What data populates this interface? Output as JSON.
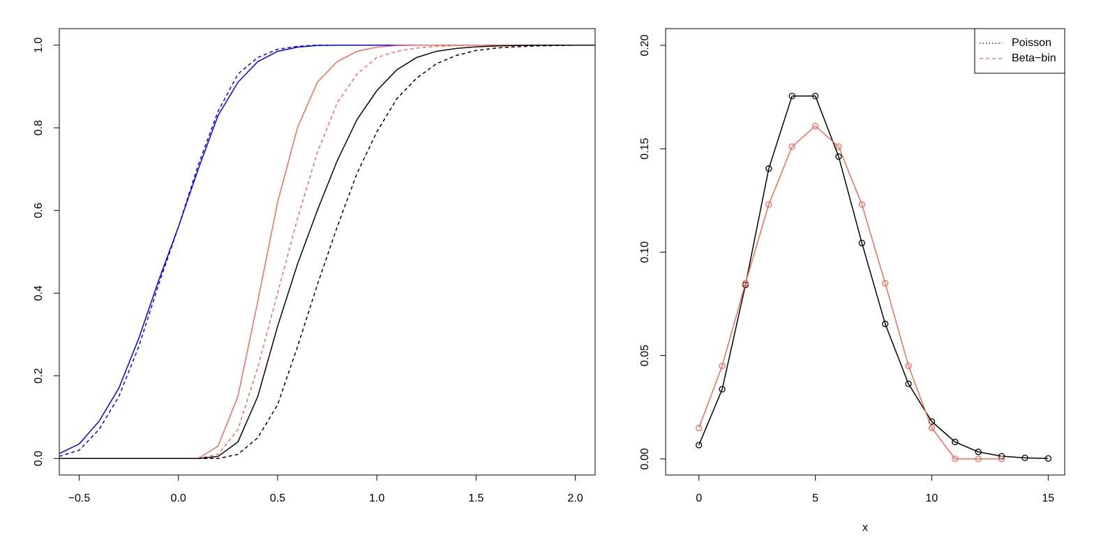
{
  "chart_data": [
    {
      "type": "line",
      "x": [
        -0.6,
        -0.5,
        -0.4,
        -0.3,
        -0.2,
        -0.1,
        0,
        0.1,
        0.2,
        0.3,
        0.4,
        0.5,
        0.6,
        0.7,
        0.8,
        0.9,
        1.0,
        1.1,
        1.2,
        1.3,
        1.4,
        1.5,
        1.6,
        1.7,
        1.8,
        1.9,
        2.0,
        2.1
      ],
      "series": [
        {
          "color": "#0000ff",
          "linestyle": "solid",
          "values": [
            0.012,
            0.035,
            0.09,
            0.17,
            0.29,
            0.43,
            0.56,
            0.7,
            0.83,
            0.91,
            0.96,
            0.985,
            0.995,
            0.999,
            1,
            1,
            1,
            1,
            1,
            1,
            1,
            1,
            1,
            1,
            1,
            1,
            1,
            1
          ]
        },
        {
          "color": "#0000ff",
          "linestyle": "dashed",
          "values": [
            0.005,
            0.02,
            0.07,
            0.15,
            0.27,
            0.42,
            0.56,
            0.71,
            0.84,
            0.93,
            0.97,
            0.99,
            0.997,
            1,
            1,
            1,
            1,
            1,
            1,
            1,
            1,
            1,
            1,
            1,
            1,
            1,
            1,
            1
          ]
        },
        {
          "color": "#f26b5b",
          "linestyle": "solid",
          "values": [
            0,
            0,
            0,
            0,
            0,
            0,
            0,
            0,
            0.03,
            0.15,
            0.38,
            0.62,
            0.8,
            0.91,
            0.96,
            0.985,
            0.995,
            0.999,
            1,
            1,
            1,
            1,
            1,
            1,
            1,
            1,
            1,
            1
          ]
        },
        {
          "color": "#f26b5b",
          "linestyle": "dashed",
          "values": [
            0,
            0,
            0,
            0,
            0,
            0,
            0,
            0,
            0.01,
            0.07,
            0.22,
            0.4,
            0.58,
            0.74,
            0.86,
            0.93,
            0.97,
            0.985,
            0.993,
            0.997,
            0.999,
            1,
            1,
            1,
            1,
            1,
            1,
            1
          ]
        },
        {
          "color": "#000000",
          "linestyle": "solid",
          "values": [
            0,
            0,
            0,
            0,
            0,
            0,
            0,
            0,
            0.005,
            0.04,
            0.15,
            0.32,
            0.47,
            0.6,
            0.72,
            0.82,
            0.89,
            0.94,
            0.97,
            0.985,
            0.992,
            0.996,
            0.998,
            0.999,
            1,
            1,
            1,
            1
          ]
        },
        {
          "color": "#000000",
          "linestyle": "dashed",
          "values": [
            0,
            0,
            0,
            0,
            0,
            0,
            0,
            0,
            0,
            0.01,
            0.05,
            0.13,
            0.27,
            0.42,
            0.56,
            0.69,
            0.79,
            0.87,
            0.92,
            0.955,
            0.975,
            0.987,
            0.993,
            0.996,
            0.998,
            0.999,
            1,
            1
          ]
        }
      ],
      "xlim": [
        -0.6,
        2.1
      ],
      "ylim": [
        -0.04,
        1.04
      ],
      "xticks": [
        {
          "value": -0.5,
          "label": "−0.5"
        },
        {
          "value": 0,
          "label": "0.0"
        },
        0.5,
        {
          "value": 1,
          "label": "1.0"
        },
        1.5,
        {
          "value": 2,
          "label": "2.0"
        }
      ],
      "yticks": [
        {
          "value": 0,
          "label": "0.0"
        },
        0.2,
        0.4,
        0.6,
        0.8,
        {
          "value": 1,
          "label": "1.0"
        }
      ],
      "grid": false,
      "markers": false
    },
    {
      "type": "line",
      "x_label": "x",
      "x": [
        0,
        1,
        2,
        3,
        4,
        5,
        6,
        7,
        8,
        9,
        10,
        11,
        12,
        13,
        14,
        15
      ],
      "series": [
        {
          "name": "Poisson",
          "color": "#000000",
          "legend_linestyle": "dotted",
          "values": [
            0.0067,
            0.0337,
            0.0842,
            0.1404,
            0.1755,
            0.1755,
            0.1462,
            0.1044,
            0.0653,
            0.0363,
            0.0181,
            0.0082,
            0.0034,
            0.0013,
            0.0005,
            0.0002
          ]
        },
        {
          "name": "Beta−bin",
          "color": "#f26b5b",
          "legend_linestyle": "dashed",
          "values": [
            0.015,
            0.045,
            0.085,
            0.123,
            0.151,
            0.161,
            0.151,
            0.123,
            0.085,
            0.045,
            0.015,
            0,
            0,
            0,
            null,
            null
          ]
        }
      ],
      "xlim": [
        -1.43,
        15.71
      ],
      "ylim": [
        -0.0078,
        0.2081
      ],
      "xticks": [
        0,
        5,
        10,
        15
      ],
      "yticks": [
        {
          "value": 0,
          "label": "0.00"
        },
        {
          "value": 0.05,
          "label": "0.05"
        },
        {
          "value": 0.1,
          "label": "0.10"
        },
        {
          "value": 0.15,
          "label": "0.15"
        },
        {
          "value": 0.2,
          "label": "0.20"
        }
      ],
      "grid": false,
      "markers": true,
      "legend": "top-right"
    }
  ]
}
